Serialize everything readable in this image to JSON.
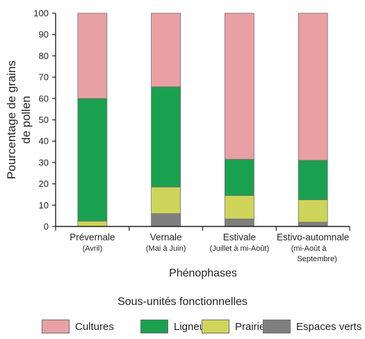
{
  "chart_data": {
    "type": "bar",
    "stacked": true,
    "categories": [
      {
        "name": "Prévernale",
        "sub": [
          "(Avril)"
        ]
      },
      {
        "name": "Vernale",
        "sub": [
          "(Mai à Juin)"
        ]
      },
      {
        "name": "Estivale",
        "sub": [
          "(Juillet à mi-Août)"
        ]
      },
      {
        "name": "Estivo-automnale",
        "sub": [
          "(mi-Août à",
          "Septembre)"
        ]
      }
    ],
    "series": [
      {
        "name": "Espaces verts",
        "color": "#7f7f7f",
        "values": [
          0,
          6,
          3.5,
          2
        ]
      },
      {
        "name": "Prairies",
        "color": "#cfd45a",
        "values": [
          2.5,
          12.5,
          11,
          10.5
        ]
      },
      {
        "name": "Ligneux",
        "color": "#1aa14f",
        "values": [
          57.5,
          47,
          17,
          18.5
        ]
      },
      {
        "name": "Cultures",
        "color": "#e8a0a4",
        "values": [
          40,
          34.5,
          68.5,
          69
        ]
      }
    ],
    "ylabel": [
      "Pourcentage de grains",
      "de pollen"
    ],
    "xlabel": "Phénophases",
    "ylim": [
      0,
      100
    ],
    "yticks": [
      0,
      10,
      20,
      30,
      40,
      50,
      60,
      70,
      80,
      90,
      100
    ],
    "legend_title": "Sous-unités fonctionnelles",
    "legend_order": [
      "Cultures",
      "Ligneux",
      "Prairies",
      "Espaces verts"
    ],
    "grid": false,
    "legend_position": "bottom"
  }
}
